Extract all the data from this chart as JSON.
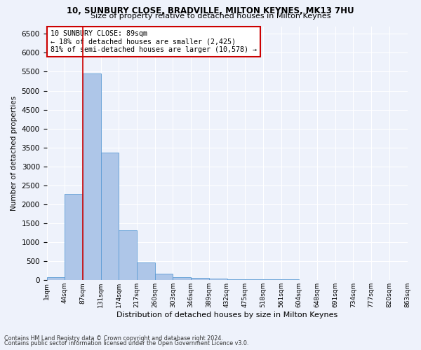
{
  "title1": "10, SUNBURY CLOSE, BRADVILLE, MILTON KEYNES, MK13 7HU",
  "title2": "Size of property relative to detached houses in Milton Keynes",
  "xlabel": "Distribution of detached houses by size in Milton Keynes",
  "ylabel": "Number of detached properties",
  "footer1": "Contains HM Land Registry data © Crown copyright and database right 2024.",
  "footer2": "Contains public sector information licensed under the Open Government Licence v3.0.",
  "annotation_title": "10 SUNBURY CLOSE: 89sqm",
  "annotation_line1": "← 18% of detached houses are smaller (2,425)",
  "annotation_line2": "81% of semi-detached houses are larger (10,578) →",
  "bar_values": [
    75,
    2275,
    5450,
    3375,
    1310,
    475,
    165,
    80,
    60,
    40,
    30,
    25,
    20,
    15,
    10,
    8,
    6,
    5,
    4,
    3
  ],
  "bin_labels": [
    "1sqm",
    "44sqm",
    "87sqm",
    "131sqm",
    "174sqm",
    "217sqm",
    "260sqm",
    "303sqm",
    "346sqm",
    "389sqm",
    "432sqm",
    "475sqm",
    "518sqm",
    "561sqm",
    "604sqm",
    "648sqm",
    "691sqm",
    "734sqm",
    "777sqm",
    "820sqm",
    "863sqm"
  ],
  "bar_color": "#aec6e8",
  "bar_edge_color": "#5b9bd5",
  "vline_color": "#cc0000",
  "ylim": [
    0,
    6700
  ],
  "yticks": [
    0,
    500,
    1000,
    1500,
    2000,
    2500,
    3000,
    3500,
    4000,
    4500,
    5000,
    5500,
    6000,
    6500
  ],
  "annotation_box_color": "white",
  "annotation_box_edge": "#cc0000",
  "bg_color": "#eef2fb",
  "grid_color": "white"
}
